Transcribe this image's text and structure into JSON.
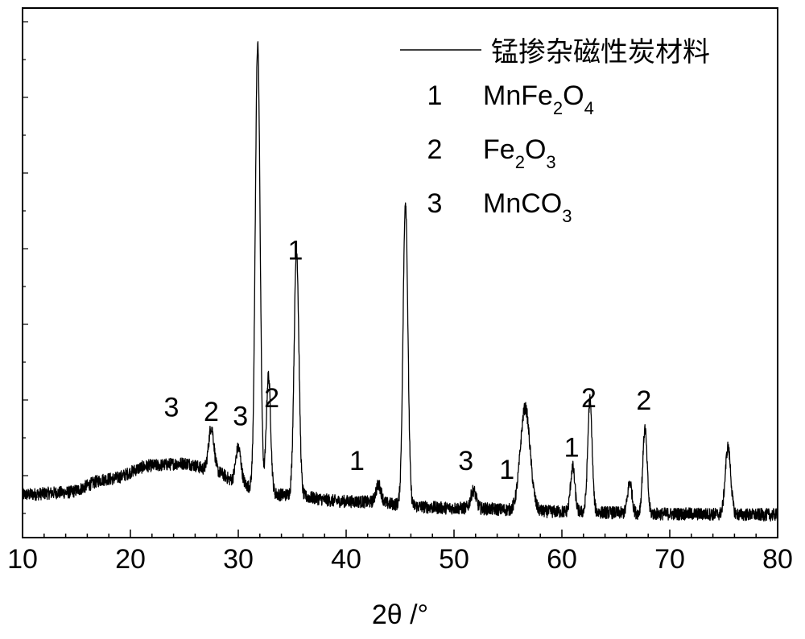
{
  "legend": {
    "series_name": "锰掺杂磁性炭材料",
    "entries": [
      {
        "num": "1",
        "formula": [
          {
            "t": "MnFe"
          },
          {
            "t": "2",
            "sub": true
          },
          {
            "t": "O"
          },
          {
            "t": "4",
            "sub": true
          }
        ]
      },
      {
        "num": "2",
        "formula": [
          {
            "t": "Fe"
          },
          {
            "t": "2",
            "sub": true
          },
          {
            "t": "O"
          },
          {
            "t": "3",
            "sub": true
          }
        ]
      },
      {
        "num": "3",
        "formula": [
          {
            "t": "MnCO"
          },
          {
            "t": "3",
            "sub": true
          }
        ]
      }
    ]
  },
  "chart_data": {
    "type": "line",
    "xlabel": "2θ /°",
    "ylabel": "",
    "xlim": [
      10,
      80
    ],
    "ylim": [
      0,
      100
    ],
    "x_ticks": [
      10,
      20,
      30,
      40,
      50,
      60,
      70,
      80
    ],
    "x_tick_labels": [
      "10",
      "20",
      "30",
      "40",
      "50",
      "60",
      "70",
      "80"
    ],
    "y_tick_labels_shown": false,
    "grid": false,
    "legend_position": "top-right",
    "series": [
      {
        "name": "锰掺杂磁性炭材料",
        "color": "#000000",
        "background": [
          [
            10,
            6
          ],
          [
            14,
            6.5
          ],
          [
            18,
            9.5
          ],
          [
            22,
            12.5
          ],
          [
            25,
            13
          ],
          [
            28,
            11
          ],
          [
            30,
            8.5
          ],
          [
            32,
            7
          ],
          [
            34,
            6
          ],
          [
            40,
            4.5
          ],
          [
            50,
            3
          ],
          [
            60,
            2.2
          ],
          [
            70,
            1.7
          ],
          [
            80,
            1.5
          ]
        ],
        "peaks": [
          {
            "x": 27.5,
            "height": 10,
            "width": 0.25
          },
          {
            "x": 30.0,
            "height": 8,
            "width": 0.25
          },
          {
            "x": 31.8,
            "height": 100,
            "width": 0.22
          },
          {
            "x": 32.8,
            "height": 26,
            "width": 0.2
          },
          {
            "x": 35.4,
            "height": 55,
            "width": 0.22
          },
          {
            "x": 43.0,
            "height": 4,
            "width": 0.25
          },
          {
            "x": 45.5,
            "height": 68,
            "width": 0.22
          },
          {
            "x": 51.8,
            "height": 4,
            "width": 0.25
          },
          {
            "x": 56.6,
            "height": 23,
            "width": 0.45
          },
          {
            "x": 61.0,
            "height": 10,
            "width": 0.2
          },
          {
            "x": 62.6,
            "height": 25,
            "width": 0.2
          },
          {
            "x": 66.3,
            "height": 7,
            "width": 0.2
          },
          {
            "x": 67.7,
            "height": 19,
            "width": 0.2
          },
          {
            "x": 75.4,
            "height": 15,
            "width": 0.25
          }
        ],
        "noise_amplitude": 1.4
      }
    ],
    "annotations": [
      {
        "text": "3",
        "x": 23.8,
        "y": 23.5
      },
      {
        "text": "2",
        "x": 27.5,
        "y": 22.5
      },
      {
        "text": "3",
        "x": 30.2,
        "y": 21.5
      },
      {
        "text": "2",
        "x": 33.1,
        "y": 25.5
      },
      {
        "text": "1",
        "x": 35.3,
        "y": 58.5
      },
      {
        "text": "1",
        "x": 41.0,
        "y": 11.5
      },
      {
        "text": "3",
        "x": 51.1,
        "y": 11.5
      },
      {
        "text": "1",
        "x": 54.9,
        "y": 9.5
      },
      {
        "text": "1",
        "x": 60.9,
        "y": 14.5
      },
      {
        "text": "2",
        "x": 62.5,
        "y": 25.5
      },
      {
        "text": "2",
        "x": 67.6,
        "y": 25.0
      }
    ]
  }
}
